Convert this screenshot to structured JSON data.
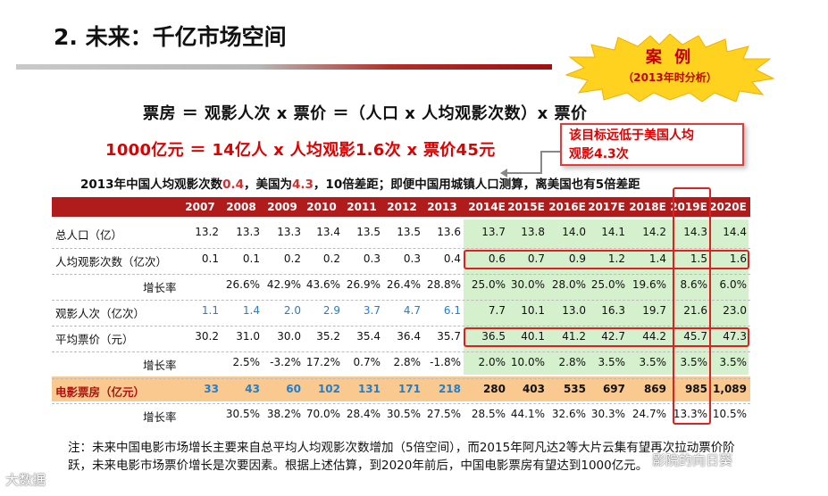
{
  "title": "2. 未来：千亿市场空间",
  "badge": {
    "line1": "案 例",
    "line2": "（2013年时分析）"
  },
  "formula1": "票房 ＝ 观影人次 x 票价 ＝（人口 x 人均观影次数）x 票价",
  "formula2": "1000亿元 ＝ 14亿人 x 人均观影1.6次 x 票价45元",
  "callout": {
    "line1": "该目标远低于美国人均",
    "line2": "观影4.3次"
  },
  "subline": {
    "p1": "2013年中国人均观影次数",
    "v1": "0.4",
    "p2": "，美国为",
    "v2": "4.3",
    "p3": "，10倍差距；即便中国用城镇人口测算，离美国也有5倍差距"
  },
  "colors": {
    "header": "#b01c1c",
    "estimate_fill": "#d5f0cc",
    "box_office_row": "#f9c98f",
    "historic_blue": "#1f7fd0",
    "highlight": "#e02020"
  },
  "table": {
    "columns": [
      "2007",
      "2008",
      "2009",
      "2010",
      "2011",
      "2012",
      "2013",
      "2014E",
      "2015E",
      "2016E",
      "2017E",
      "2018E",
      "2019E",
      "2020E"
    ],
    "rows": [
      {
        "label": "总人口（亿）",
        "values": [
          "13.2",
          "13.3",
          "13.3",
          "13.4",
          "13.5",
          "13.5",
          "13.6",
          "13.7",
          "13.8",
          "14.0",
          "14.1",
          "14.2",
          "14.3",
          "14.4"
        ]
      },
      {
        "label": "人均观影次数（亿次）",
        "values": [
          "0.1",
          "0.1",
          "0.2",
          "0.2",
          "0.3",
          "0.3",
          "0.4",
          "0.6",
          "0.7",
          "0.9",
          "1.2",
          "1.4",
          "1.5",
          "1.6"
        ]
      },
      {
        "label": "增长率",
        "values": [
          "",
          "26.6%",
          "42.9%",
          "43.6%",
          "26.9%",
          "26.4%",
          "28.8%",
          "25.0%",
          "30.0%",
          "28.0%",
          "25.0%",
          "19.6%",
          "8.6%",
          "6.0%"
        ]
      },
      {
        "label": "观影人次（亿次）",
        "values": [
          "1.1",
          "1.4",
          "2.0",
          "2.9",
          "3.7",
          "4.7",
          "6.1",
          "7.7",
          "10.1",
          "13.0",
          "16.3",
          "19.7",
          "21.6",
          "23.0"
        ]
      },
      {
        "label": "平均票价（元）",
        "values": [
          "30.2",
          "31.0",
          "30.0",
          "35.2",
          "35.4",
          "36.4",
          "35.7",
          "36.5",
          "40.1",
          "41.2",
          "42.7",
          "44.2",
          "45.7",
          "47.3"
        ]
      },
      {
        "label": "增长率",
        "values": [
          "",
          "2.5%",
          "-3.2%",
          "17.2%",
          "0.7%",
          "2.8%",
          "-1.8%",
          "2.0%",
          "10.0%",
          "2.8%",
          "3.5%",
          "3.5%",
          "3.5%",
          "3.5%"
        ]
      },
      {
        "label": "电影票房（亿元）",
        "values": [
          "33",
          "43",
          "60",
          "102",
          "131",
          "171",
          "218",
          "280",
          "403",
          "535",
          "697",
          "869",
          "985",
          "1,089"
        ]
      },
      {
        "label": "增长率",
        "values": [
          "",
          "30.5%",
          "38.2%",
          "70.0%",
          "28.4%",
          "30.5%",
          "27.5%",
          "28.5%",
          "44.1%",
          "32.6%",
          "30.3%",
          "24.7%",
          "13.3%",
          "10.5%"
        ]
      }
    ]
  },
  "note": "注：未来中国电影市场增长主要来自总平均人均观影次数增加（5倍空间），而2015年阿凡达2等大片云集有望再次拉动票价阶跃，未来电影市场票价增长是次要因素。根据上述估算，到2020年前后，中国电影票房有望达到1000亿元。",
  "watermarks": {
    "left": "大数据",
    "right": "影院的向日葵"
  }
}
